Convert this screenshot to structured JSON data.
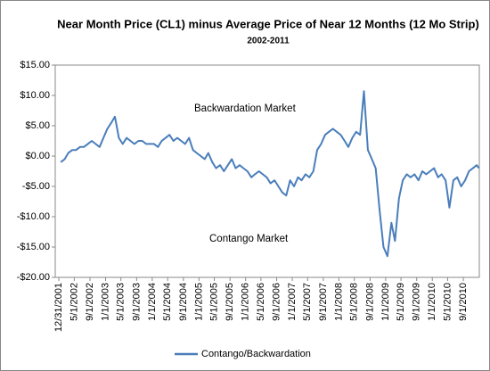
{
  "chart_data": {
    "type": "line",
    "title": "Near Month Price (CL1) minus Average Price of Near 12 Months (12 Mo Strip)",
    "subtitle": "2002-2011",
    "annotations": [
      "Backwardation Market",
      "Contango Market"
    ],
    "grid": false,
    "legend": "bottom",
    "xlim": [
      "12/3/2001",
      "1/4/2011"
    ],
    "xticks": [
      "12/31/2001",
      "5/1/2002",
      "9/1/2002",
      "1/1/2003",
      "5/1/2003",
      "9/1/2003",
      "1/1/2004",
      "5/1/2004",
      "9/1/2004",
      "1/1/2005",
      "5/1/2005",
      "9/1/2005",
      "1/1/2006",
      "5/1/2006",
      "9/1/2006",
      "1/1/2007",
      "5/1/2007",
      "9/1/2007",
      "1/1/2008",
      "5/1/2008",
      "9/1/2008",
      "1/1/2009",
      "5/1/2009",
      "9/1/2009",
      "1/1/2010",
      "5/1/2010",
      "9/1/2010"
    ],
    "ylim": [
      -20,
      15
    ],
    "yticks": [
      {
        "value": -20,
        "label": "-$20.00"
      },
      {
        "value": -15,
        "label": "-$15.00"
      },
      {
        "value": -10,
        "label": "-$10.00"
      },
      {
        "value": -5,
        "label": "-$5.00"
      },
      {
        "value": 0,
        "label": "$0.00"
      },
      {
        "value": 5,
        "label": "$5.00"
      },
      {
        "value": 10,
        "label": "$10.00"
      },
      {
        "value": 15,
        "label": "$15.00"
      }
    ],
    "x": [
      "1/15/2002",
      "2/15/2002",
      "3/15/2002",
      "4/15/2002",
      "5/15/2002",
      "6/15/2002",
      "7/15/2002",
      "8/15/2002",
      "9/15/2002",
      "10/15/2002",
      "11/15/2002",
      "12/15/2002",
      "1/15/2003",
      "2/15/2003",
      "3/15/2003",
      "4/15/2003",
      "5/15/2003",
      "6/15/2003",
      "7/15/2003",
      "8/15/2003",
      "9/15/2003",
      "10/15/2003",
      "11/15/2003",
      "12/15/2003",
      "1/15/2004",
      "2/15/2004",
      "3/15/2004",
      "4/15/2004",
      "5/15/2004",
      "6/15/2004",
      "7/15/2004",
      "8/15/2004",
      "9/15/2004",
      "10/15/2004",
      "11/15/2004",
      "12/15/2004",
      "1/15/2005",
      "2/15/2005",
      "3/15/2005",
      "4/15/2005",
      "5/15/2005",
      "6/15/2005",
      "7/15/2005",
      "8/15/2005",
      "9/15/2005",
      "10/15/2005",
      "11/15/2005",
      "12/15/2005",
      "1/15/2006",
      "2/15/2006",
      "3/15/2006",
      "4/15/2006",
      "5/15/2006",
      "6/15/2006",
      "7/15/2006",
      "8/15/2006",
      "9/15/2006",
      "10/15/2006",
      "11/15/2006",
      "12/15/2006",
      "1/15/2007",
      "2/15/2007",
      "3/15/2007",
      "4/15/2007",
      "5/15/2007",
      "6/15/2007",
      "7/15/2007",
      "8/15/2007",
      "9/15/2007",
      "10/15/2007",
      "11/15/2007",
      "12/15/2007",
      "1/15/2008",
      "2/15/2008",
      "3/15/2008",
      "4/15/2008",
      "5/15/2008",
      "6/15/2008",
      "7/15/2008",
      "8/15/2008",
      "9/15/2008",
      "10/15/2008",
      "11/15/2008",
      "12/15/2008",
      "1/15/2009",
      "2/15/2009",
      "3/15/2009",
      "4/15/2009",
      "5/15/2009",
      "6/15/2009",
      "7/15/2009",
      "8/15/2009",
      "9/15/2009",
      "10/15/2009",
      "11/15/2009",
      "12/15/2009",
      "1/15/2010",
      "2/15/2010",
      "3/15/2010",
      "4/15/2010",
      "5/15/2010",
      "6/15/2010",
      "7/15/2010",
      "8/15/2010",
      "9/15/2010",
      "10/15/2010",
      "11/15/2010",
      "12/15/2010",
      "1/1/2011"
    ],
    "series": [
      {
        "name": "Contango/Backwardation",
        "color": "#4a7ebb",
        "values": [
          -1,
          -0.5,
          0.5,
          1,
          1,
          1.5,
          1.5,
          2,
          2.5,
          2,
          1.5,
          3,
          4.5,
          5.5,
          6.5,
          3,
          2,
          3,
          2.5,
          2,
          2.5,
          2.5,
          2,
          2,
          2,
          1.5,
          2.5,
          3,
          3.5,
          2.5,
          3,
          2.5,
          2,
          3,
          1,
          0.5,
          0,
          -0.5,
          0.5,
          -1,
          -2,
          -1.5,
          -2.5,
          -1.5,
          -0.5,
          -2,
          -1.5,
          -2,
          -2.5,
          -3.5,
          -3,
          -2.5,
          -3,
          -3.5,
          -4.5,
          -4,
          -5,
          -6,
          -6.5,
          -4,
          -5,
          -3.5,
          -4,
          -3,
          -3.5,
          -2.5,
          1,
          2,
          3.5,
          4,
          4.5,
          4,
          3.5,
          2.5,
          1.5,
          3,
          4,
          3.5,
          10.7,
          1,
          -0.5,
          -2,
          -9,
          -15,
          -16.5,
          -11,
          -14,
          -7,
          -4,
          -3,
          -3.5,
          -3,
          -4,
          -2.5,
          -3,
          -2.5,
          -2,
          -3.5,
          -3,
          -4,
          -8.5,
          -4,
          -3.5,
          -5,
          -4,
          -2.5,
          -2,
          -1.5,
          -2
        ]
      }
    ]
  }
}
